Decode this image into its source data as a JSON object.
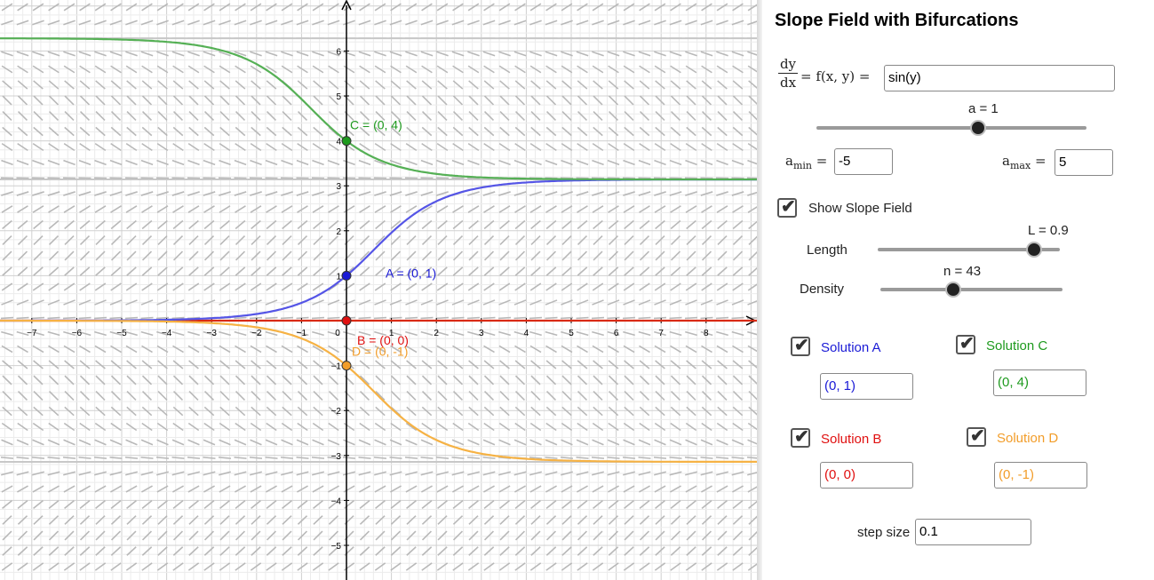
{
  "graph": {
    "x_ticks": [
      "−7",
      "−6",
      "−5",
      "−4",
      "−3",
      "−2",
      "−1",
      "0",
      "1",
      "2",
      "3",
      "4",
      "5",
      "6",
      "7",
      "8"
    ],
    "y_ticks": [
      "6",
      "5",
      "4",
      "3",
      "2",
      "1",
      "−1",
      "−2",
      "−3",
      "−4",
      "−5"
    ],
    "points": {
      "A": {
        "label": "A = (0, 1)",
        "color": "#1a1ad6",
        "x": 0,
        "y": 1
      },
      "B": {
        "label": "B = (0, 0)",
        "color": "#e01010",
        "x": 0,
        "y": 0
      },
      "C": {
        "label": "C = (0, 4)",
        "color": "#1e9a1e",
        "x": 0,
        "y": 4
      },
      "D": {
        "label": "D = (0, -1)",
        "color": "#f29d2a",
        "x": 0,
        "y": -1
      }
    },
    "colors": {
      "axis": "#000000",
      "grid": "#e0e0e0",
      "field": "#b8b8b8",
      "equilibrium": "#c8c8c8",
      "curve_A": "#5555e6",
      "curve_B": "#d92a10",
      "curve_C": "#55b055",
      "curve_D": "#f6b244"
    }
  },
  "panel": {
    "title": "Slope Field with Bifurcations",
    "eq_num": "dy",
    "eq_den": "dx",
    "eq_rhs": "= f(x, y) =",
    "function_value": "sin(y)",
    "slider_a": {
      "label": "a = 1",
      "value": 1,
      "min": -5,
      "max": 5
    },
    "amin": {
      "main": "a",
      "sub": "min",
      "eq": "=",
      "value": "-5"
    },
    "amax": {
      "main": "a",
      "sub": "max",
      "eq": "=",
      "value": "5"
    },
    "show_slope_field": {
      "label": "Show Slope Field",
      "checked": true
    },
    "length": {
      "label": "Length",
      "slider_label": "L = 0.9",
      "fraction": 0.86
    },
    "density": {
      "label": "Density",
      "slider_label": "n = 43",
      "fraction": 0.4
    },
    "solutions": [
      {
        "label": "Solution A",
        "value": "(0, 1)",
        "color": "#1a1ad6",
        "checked": true
      },
      {
        "label": "Solution C",
        "value": "(0, 4)",
        "color": "#1e9a1e",
        "checked": true
      },
      {
        "label": "Solution B",
        "value": "(0, 0)",
        "color": "#e01010",
        "checked": true
      },
      {
        "label": "Solution D",
        "value": "(0, -1)",
        "color": "#f29d2a",
        "checked": true
      }
    ],
    "step_size": {
      "label": "step size",
      "value": "0.1"
    }
  }
}
